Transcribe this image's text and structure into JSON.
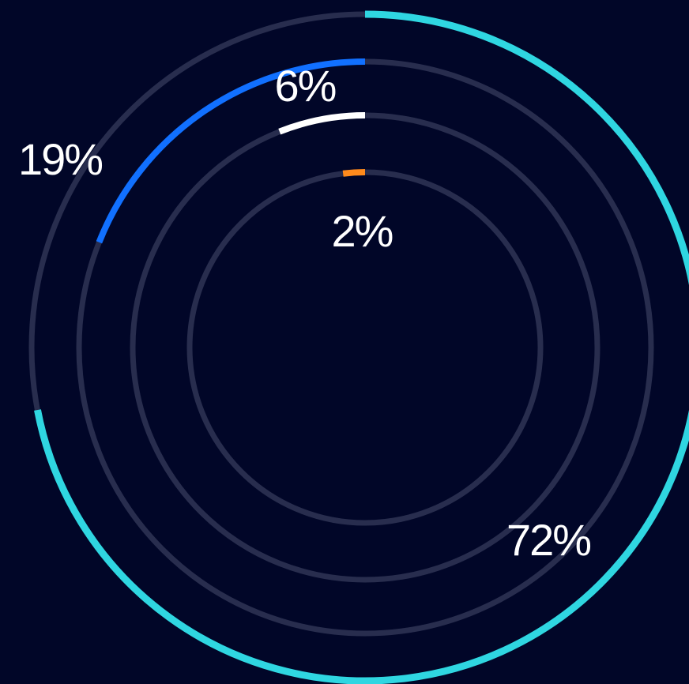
{
  "colors": {
    "background": "#010628",
    "track": "#282d4e",
    "label": "#ffffff"
  },
  "chart_data": {
    "type": "radial-bar",
    "title": "",
    "series": [
      {
        "label": "72%",
        "value": 72,
        "color": "#2fd6e1"
      },
      {
        "label": "19%",
        "value": 19,
        "color": "#1170ff"
      },
      {
        "label": "6%",
        "value": 6,
        "color": "#ffffff"
      },
      {
        "label": "2%",
        "value": 2,
        "color": "#ff8a1c"
      }
    ]
  }
}
